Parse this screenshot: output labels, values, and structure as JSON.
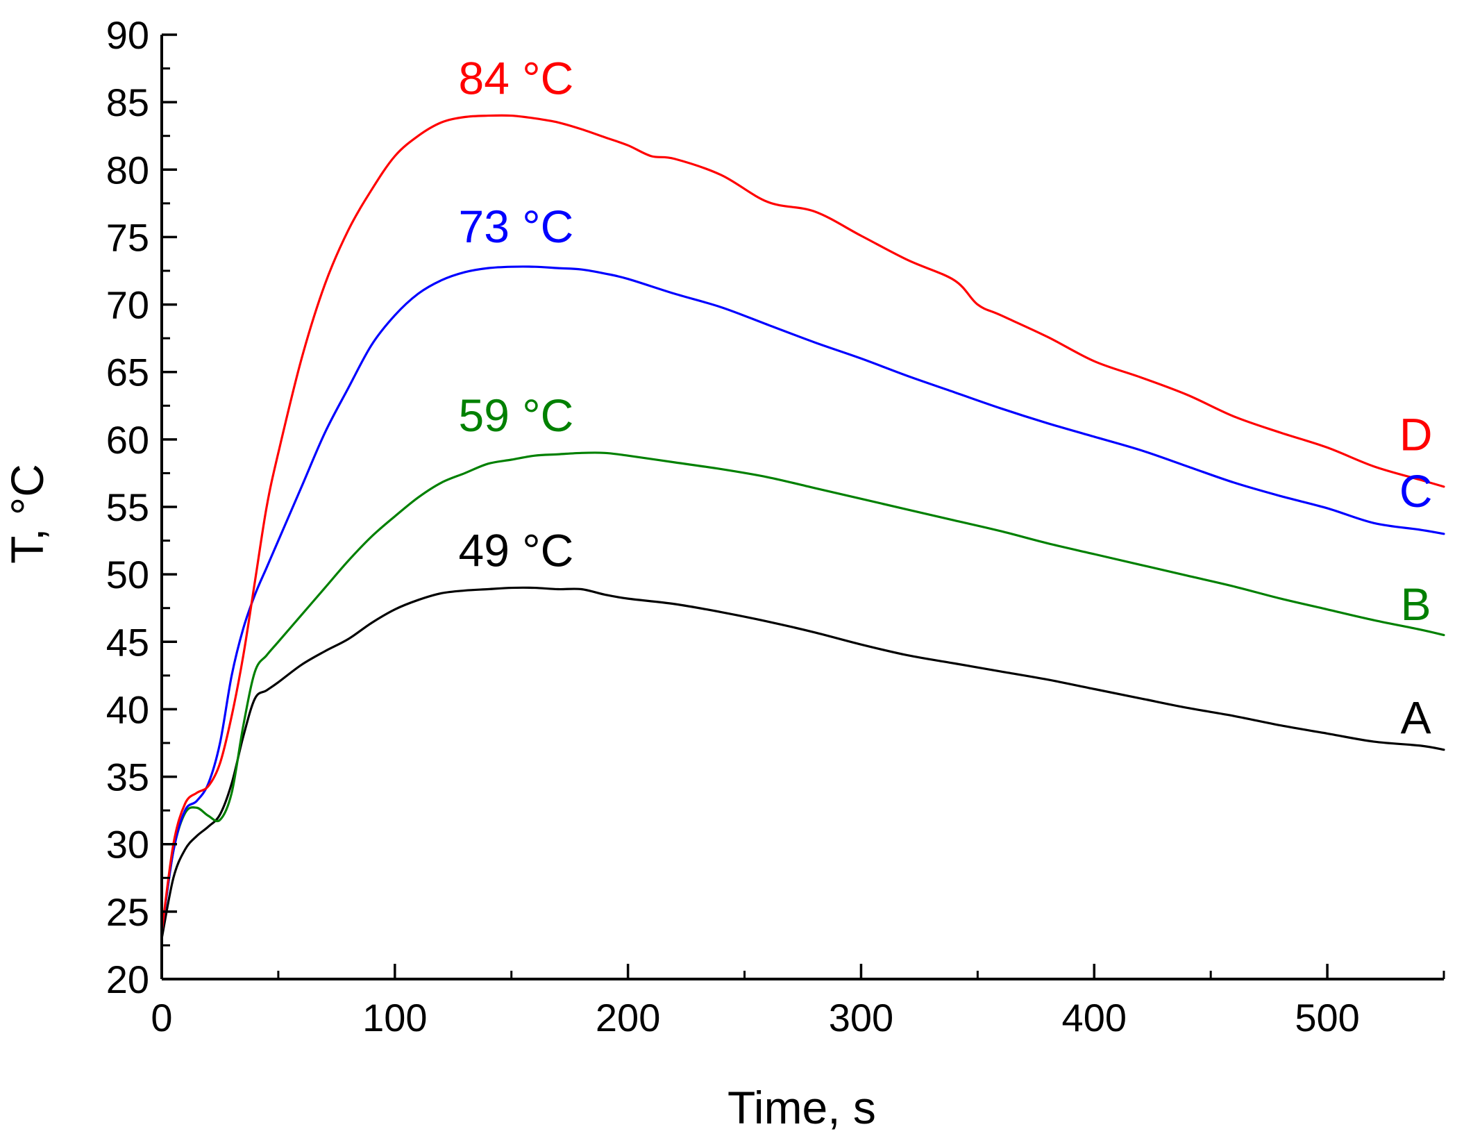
{
  "chart_data": {
    "type": "line",
    "title": "",
    "xlabel": "Time, s",
    "ylabel": "T, °C",
    "xlim": [
      0,
      550
    ],
    "ylim": [
      20,
      90
    ],
    "x_ticks": [
      0,
      100,
      200,
      300,
      400,
      500
    ],
    "x_tick_labels": [
      "0",
      "100",
      "200",
      "300",
      "400",
      "500"
    ],
    "x_minor_step": 50,
    "y_ticks": [
      20,
      25,
      30,
      35,
      40,
      45,
      50,
      55,
      60,
      65,
      70,
      75,
      80,
      85,
      90
    ],
    "y_tick_labels": [
      "20",
      "25",
      "30",
      "35",
      "40",
      "45",
      "50",
      "55",
      "60",
      "65",
      "70",
      "75",
      "80",
      "85",
      "90"
    ],
    "y_minor_step": 2.5,
    "grid": false,
    "series": [
      {
        "id": "A",
        "name": "A",
        "end_label": "A",
        "peak_label": "49 °C",
        "peak_label_pos": [
          152,
          50.6
        ],
        "end_label_pos": [
          538,
          38.2
        ],
        "color": "#000000",
        "x": [
          0,
          5,
          10,
          15,
          20,
          25,
          30,
          35,
          40,
          45,
          50,
          60,
          70,
          80,
          90,
          100,
          110,
          120,
          130,
          140,
          150,
          160,
          170,
          180,
          190,
          200,
          220,
          240,
          260,
          280,
          300,
          320,
          340,
          360,
          380,
          400,
          420,
          440,
          460,
          480,
          500,
          520,
          540,
          550
        ],
        "y": [
          23.0,
          27.5,
          29.6,
          30.6,
          31.3,
          32.2,
          34.5,
          38.0,
          40.8,
          41.4,
          42.0,
          43.3,
          44.3,
          45.2,
          46.4,
          47.4,
          48.1,
          48.6,
          48.8,
          48.9,
          49.0,
          49.0,
          48.9,
          48.9,
          48.5,
          48.2,
          47.8,
          47.2,
          46.5,
          45.7,
          44.8,
          44.0,
          43.4,
          42.8,
          42.2,
          41.5,
          40.8,
          40.1,
          39.5,
          38.8,
          38.2,
          37.6,
          37.3,
          37.0
        ]
      },
      {
        "id": "B",
        "name": "B",
        "end_label": "B",
        "peak_label": "59 °C",
        "peak_label_pos": [
          152,
          60.6
        ],
        "end_label_pos": [
          538,
          46.6
        ],
        "color": "#008000",
        "x": [
          0,
          5,
          10,
          15,
          20,
          25,
          30,
          35,
          40,
          45,
          50,
          60,
          70,
          80,
          90,
          100,
          110,
          120,
          130,
          140,
          150,
          160,
          170,
          180,
          190,
          200,
          220,
          240,
          260,
          280,
          300,
          320,
          340,
          360,
          380,
          400,
          420,
          440,
          460,
          480,
          500,
          520,
          540,
          550
        ],
        "y": [
          23.5,
          29.5,
          32.3,
          32.7,
          32.1,
          31.8,
          33.8,
          38.8,
          42.8,
          44.0,
          45.0,
          47.0,
          49.0,
          51.0,
          52.8,
          54.3,
          55.7,
          56.8,
          57.5,
          58.2,
          58.5,
          58.8,
          58.9,
          59.0,
          59.0,
          58.8,
          58.3,
          57.8,
          57.2,
          56.4,
          55.6,
          54.8,
          54.0,
          53.2,
          52.3,
          51.5,
          50.7,
          49.9,
          49.1,
          48.2,
          47.4,
          46.6,
          45.9,
          45.5
        ]
      },
      {
        "id": "C",
        "name": "C",
        "end_label": "C",
        "peak_label": "73 °C",
        "peak_label_pos": [
          152,
          74.6
        ],
        "end_label_pos": [
          538,
          55.0
        ],
        "color": "#0000ff",
        "x": [
          0,
          5,
          10,
          15,
          20,
          25,
          30,
          35,
          40,
          45,
          50,
          60,
          70,
          80,
          90,
          100,
          110,
          120,
          130,
          140,
          150,
          160,
          170,
          180,
          190,
          200,
          220,
          240,
          260,
          280,
          300,
          320,
          340,
          360,
          380,
          400,
          420,
          440,
          460,
          480,
          500,
          520,
          540,
          550
        ],
        "y": [
          23.5,
          29.5,
          32.5,
          33.2,
          34.5,
          37.5,
          42.5,
          46.0,
          48.5,
          50.5,
          52.5,
          56.5,
          60.5,
          63.8,
          67.0,
          69.2,
          70.8,
          71.8,
          72.4,
          72.7,
          72.8,
          72.8,
          72.7,
          72.6,
          72.3,
          71.9,
          70.8,
          69.8,
          68.5,
          67.2,
          66.0,
          64.7,
          63.5,
          62.3,
          61.2,
          60.2,
          59.2,
          58.0,
          56.8,
          55.8,
          54.9,
          53.8,
          53.3,
          53.0
        ]
      },
      {
        "id": "D",
        "name": "D",
        "end_label": "D",
        "peak_label": "84 °C",
        "peak_label_pos": [
          152,
          85.6
        ],
        "end_label_pos": [
          538,
          59.2
        ],
        "color": "#ff0000",
        "x": [
          0,
          5,
          10,
          15,
          20,
          25,
          30,
          35,
          40,
          45,
          50,
          60,
          70,
          80,
          90,
          100,
          110,
          120,
          130,
          140,
          150,
          160,
          170,
          180,
          190,
          200,
          210,
          220,
          240,
          260,
          280,
          300,
          320,
          340,
          350,
          360,
          380,
          400,
          420,
          440,
          460,
          480,
          500,
          520,
          540,
          550
        ],
        "y": [
          23.5,
          30.0,
          33.0,
          33.8,
          34.3,
          36.0,
          39.5,
          44.0,
          49.5,
          55.0,
          59.0,
          66.0,
          71.5,
          75.5,
          78.5,
          81.0,
          82.5,
          83.5,
          83.9,
          84.0,
          84.0,
          83.8,
          83.5,
          83.0,
          82.4,
          81.8,
          81.0,
          80.8,
          79.6,
          77.6,
          76.9,
          75.1,
          73.3,
          71.8,
          70.0,
          69.2,
          67.6,
          65.8,
          64.6,
          63.3,
          61.7,
          60.5,
          59.4,
          58.0,
          57.0,
          56.5
        ]
      }
    ]
  }
}
